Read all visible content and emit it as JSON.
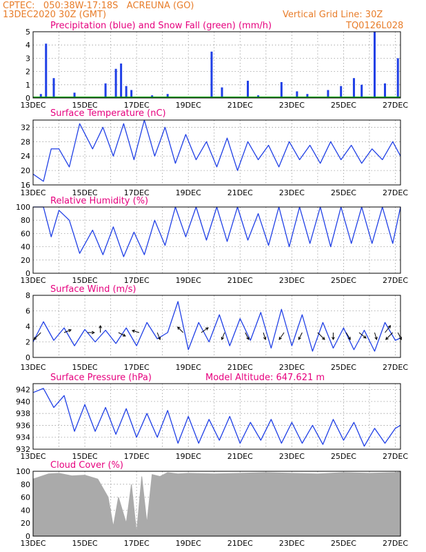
{
  "header": {
    "left_line1": "CPTEC:   050:38W-17:18S   ACREUNA (GO)",
    "left_line2": "13DEC2020 30Z (GMT)",
    "right_line1": "Vertical Grid Line: 30Z",
    "right_line2": "TQ0126L028"
  },
  "colors": {
    "series": "#1f3fe6",
    "snow": "#00a000",
    "cloud": "#aaaaaa",
    "header": "#e87d2a",
    "title": "#e6007e"
  },
  "x_labels": [
    "13DEC",
    "15DEC",
    "17DEC",
    "19DEC",
    "21DEC",
    "23DEC",
    "25DEC",
    "27DEC"
  ],
  "chart_data": [
    {
      "type": "bar",
      "title": "Precipitation (blue) and Snow Fall (green) (mm/h)",
      "ylim": [
        0,
        5
      ],
      "yticks": [
        0,
        1,
        2,
        3,
        4,
        5
      ],
      "x": [
        0.3,
        0.5,
        0.8,
        1.6,
        2.8,
        3.2,
        3.4,
        3.6,
        3.8,
        4.6,
        5.2,
        6.9,
        7.3,
        8.3,
        8.7,
        9.6,
        10.2,
        10.6,
        11.4,
        11.9,
        12.4,
        12.7,
        13.2,
        13.6,
        14.1
      ],
      "values": [
        0.3,
        4.1,
        1.5,
        0.4,
        1.1,
        2.2,
        2.6,
        0.9,
        0.6,
        0.2,
        0.3,
        3.5,
        0.8,
        1.3,
        0.2,
        1.2,
        0.5,
        0.3,
        0.6,
        0.9,
        1.5,
        1.0,
        5.0,
        1.1,
        3.0
      ],
      "snow_values": [
        0,
        0,
        0,
        0,
        0,
        0,
        0,
        0,
        0,
        0,
        0,
        0,
        0,
        0,
        0,
        0,
        0,
        0,
        0,
        0,
        0,
        0,
        0,
        0,
        0
      ]
    },
    {
      "type": "line",
      "title": "Surface Temperature (nC)",
      "ylim": [
        16,
        34
      ],
      "yticks": [
        16,
        20,
        24,
        28,
        32
      ],
      "x": [
        0,
        0.4,
        0.7,
        1.0,
        1.4,
        1.8,
        2.3,
        2.7,
        3.1,
        3.5,
        3.9,
        4.3,
        4.7,
        5.1,
        5.5,
        5.9,
        6.3,
        6.7,
        7.1,
        7.5,
        7.9,
        8.3,
        8.7,
        9.1,
        9.5,
        9.9,
        10.3,
        10.7,
        11.1,
        11.5,
        11.9,
        12.3,
        12.7,
        13.1,
        13.5,
        13.9,
        14.2
      ],
      "values": [
        19,
        17,
        26,
        26,
        21,
        33,
        26,
        32,
        24,
        33,
        23,
        34,
        24,
        32,
        22,
        30,
        23,
        28,
        21,
        29,
        20,
        28,
        23,
        27,
        21,
        28,
        23,
        27,
        22,
        28,
        23,
        27,
        22,
        26,
        23,
        28,
        24
      ]
    },
    {
      "type": "line",
      "title": "Relative Humidity (%)",
      "ylim": [
        0,
        100
      ],
      "yticks": [
        0,
        20,
        40,
        60,
        80,
        100
      ],
      "x": [
        0,
        0.4,
        0.7,
        1.0,
        1.4,
        1.8,
        2.3,
        2.7,
        3.1,
        3.5,
        3.9,
        4.3,
        4.7,
        5.1,
        5.5,
        5.9,
        6.3,
        6.7,
        7.1,
        7.5,
        7.9,
        8.3,
        8.7,
        9.1,
        9.5,
        9.9,
        10.3,
        10.7,
        11.1,
        11.5,
        11.9,
        12.3,
        12.7,
        13.1,
        13.5,
        13.9,
        14.2
      ],
      "values": [
        100,
        100,
        55,
        95,
        80,
        30,
        65,
        28,
        70,
        25,
        62,
        28,
        80,
        42,
        100,
        55,
        100,
        50,
        100,
        48,
        100,
        50,
        90,
        42,
        100,
        40,
        100,
        45,
        100,
        40,
        100,
        45,
        100,
        45,
        100,
        45,
        100
      ]
    },
    {
      "type": "line",
      "title": "Surface Wind (m/s)",
      "ylim": [
        0,
        8
      ],
      "yticks": [
        0,
        2,
        4,
        6,
        8
      ],
      "x": [
        0,
        0.4,
        0.8,
        1.2,
        1.6,
        2.0,
        2.4,
        2.8,
        3.2,
        3.6,
        4.0,
        4.4,
        4.8,
        5.2,
        5.6,
        6.0,
        6.4,
        6.8,
        7.2,
        7.6,
        8.0,
        8.4,
        8.8,
        9.2,
        9.6,
        10.0,
        10.4,
        10.8,
        11.2,
        11.6,
        12.0,
        12.4,
        12.8,
        13.2,
        13.6,
        14.0,
        14.2
      ],
      "values": [
        2,
        4.6,
        2.2,
        3.8,
        1.5,
        3.6,
        2,
        3.5,
        1.8,
        3.8,
        1.5,
        4.5,
        2.4,
        3.2,
        7.2,
        1.0,
        4.5,
        2.0,
        5.5,
        1.5,
        5.0,
        2.2,
        5.8,
        1.2,
        6.2,
        1.5,
        5.5,
        0.8,
        4.5,
        1.2,
        3.8,
        1.0,
        3.5,
        0.8,
        4.5,
        2.2,
        2.5
      ]
    },
    {
      "type": "line",
      "title": "Surface Pressure (hPa)",
      "annotation": "Model Altitude: 647.621 m",
      "ylim": [
        932,
        943
      ],
      "yticks": [
        932,
        934,
        936,
        938,
        940,
        942
      ],
      "x": [
        0,
        0.4,
        0.8,
        1.2,
        1.6,
        2.0,
        2.4,
        2.8,
        3.2,
        3.6,
        4.0,
        4.4,
        4.8,
        5.2,
        5.6,
        6.0,
        6.4,
        6.8,
        7.2,
        7.6,
        8.0,
        8.4,
        8.8,
        9.2,
        9.6,
        10.0,
        10.4,
        10.8,
        11.2,
        11.6,
        12.0,
        12.4,
        12.8,
        13.2,
        13.6,
        14.0,
        14.2
      ],
      "values": [
        941.5,
        942.2,
        939.0,
        941.0,
        935.0,
        939.5,
        935.0,
        939.0,
        934.5,
        938.8,
        934.0,
        938.0,
        934.0,
        938.5,
        933.0,
        937.5,
        933.0,
        937.0,
        933.5,
        937.5,
        933.0,
        936.5,
        933.5,
        937.0,
        933.0,
        936.5,
        933.0,
        936.0,
        932.8,
        937.0,
        933.5,
        936.5,
        932.5,
        935.5,
        933.0,
        935.5,
        936.0
      ]
    },
    {
      "type": "area",
      "title": "Cloud Cover (%)",
      "ylim": [
        0,
        100
      ],
      "yticks": [
        0,
        20,
        40,
        60,
        80,
        100
      ],
      "x": [
        0,
        0.3,
        0.6,
        1.0,
        1.5,
        2.0,
        2.5,
        2.9,
        3.1,
        3.3,
        3.6,
        3.8,
        4.0,
        4.2,
        4.4,
        4.6,
        4.9,
        5.2,
        5.6,
        6.0,
        7.0,
        8.0,
        9.0,
        10.0,
        11.0,
        12.0,
        13.0,
        14.0,
        14.2
      ],
      "values": [
        88,
        92,
        96,
        97,
        93,
        94,
        88,
        60,
        15,
        60,
        20,
        80,
        5,
        92,
        20,
        95,
        92,
        98,
        96,
        97,
        96,
        97,
        98,
        97,
        96,
        98,
        97,
        98,
        99
      ]
    }
  ]
}
